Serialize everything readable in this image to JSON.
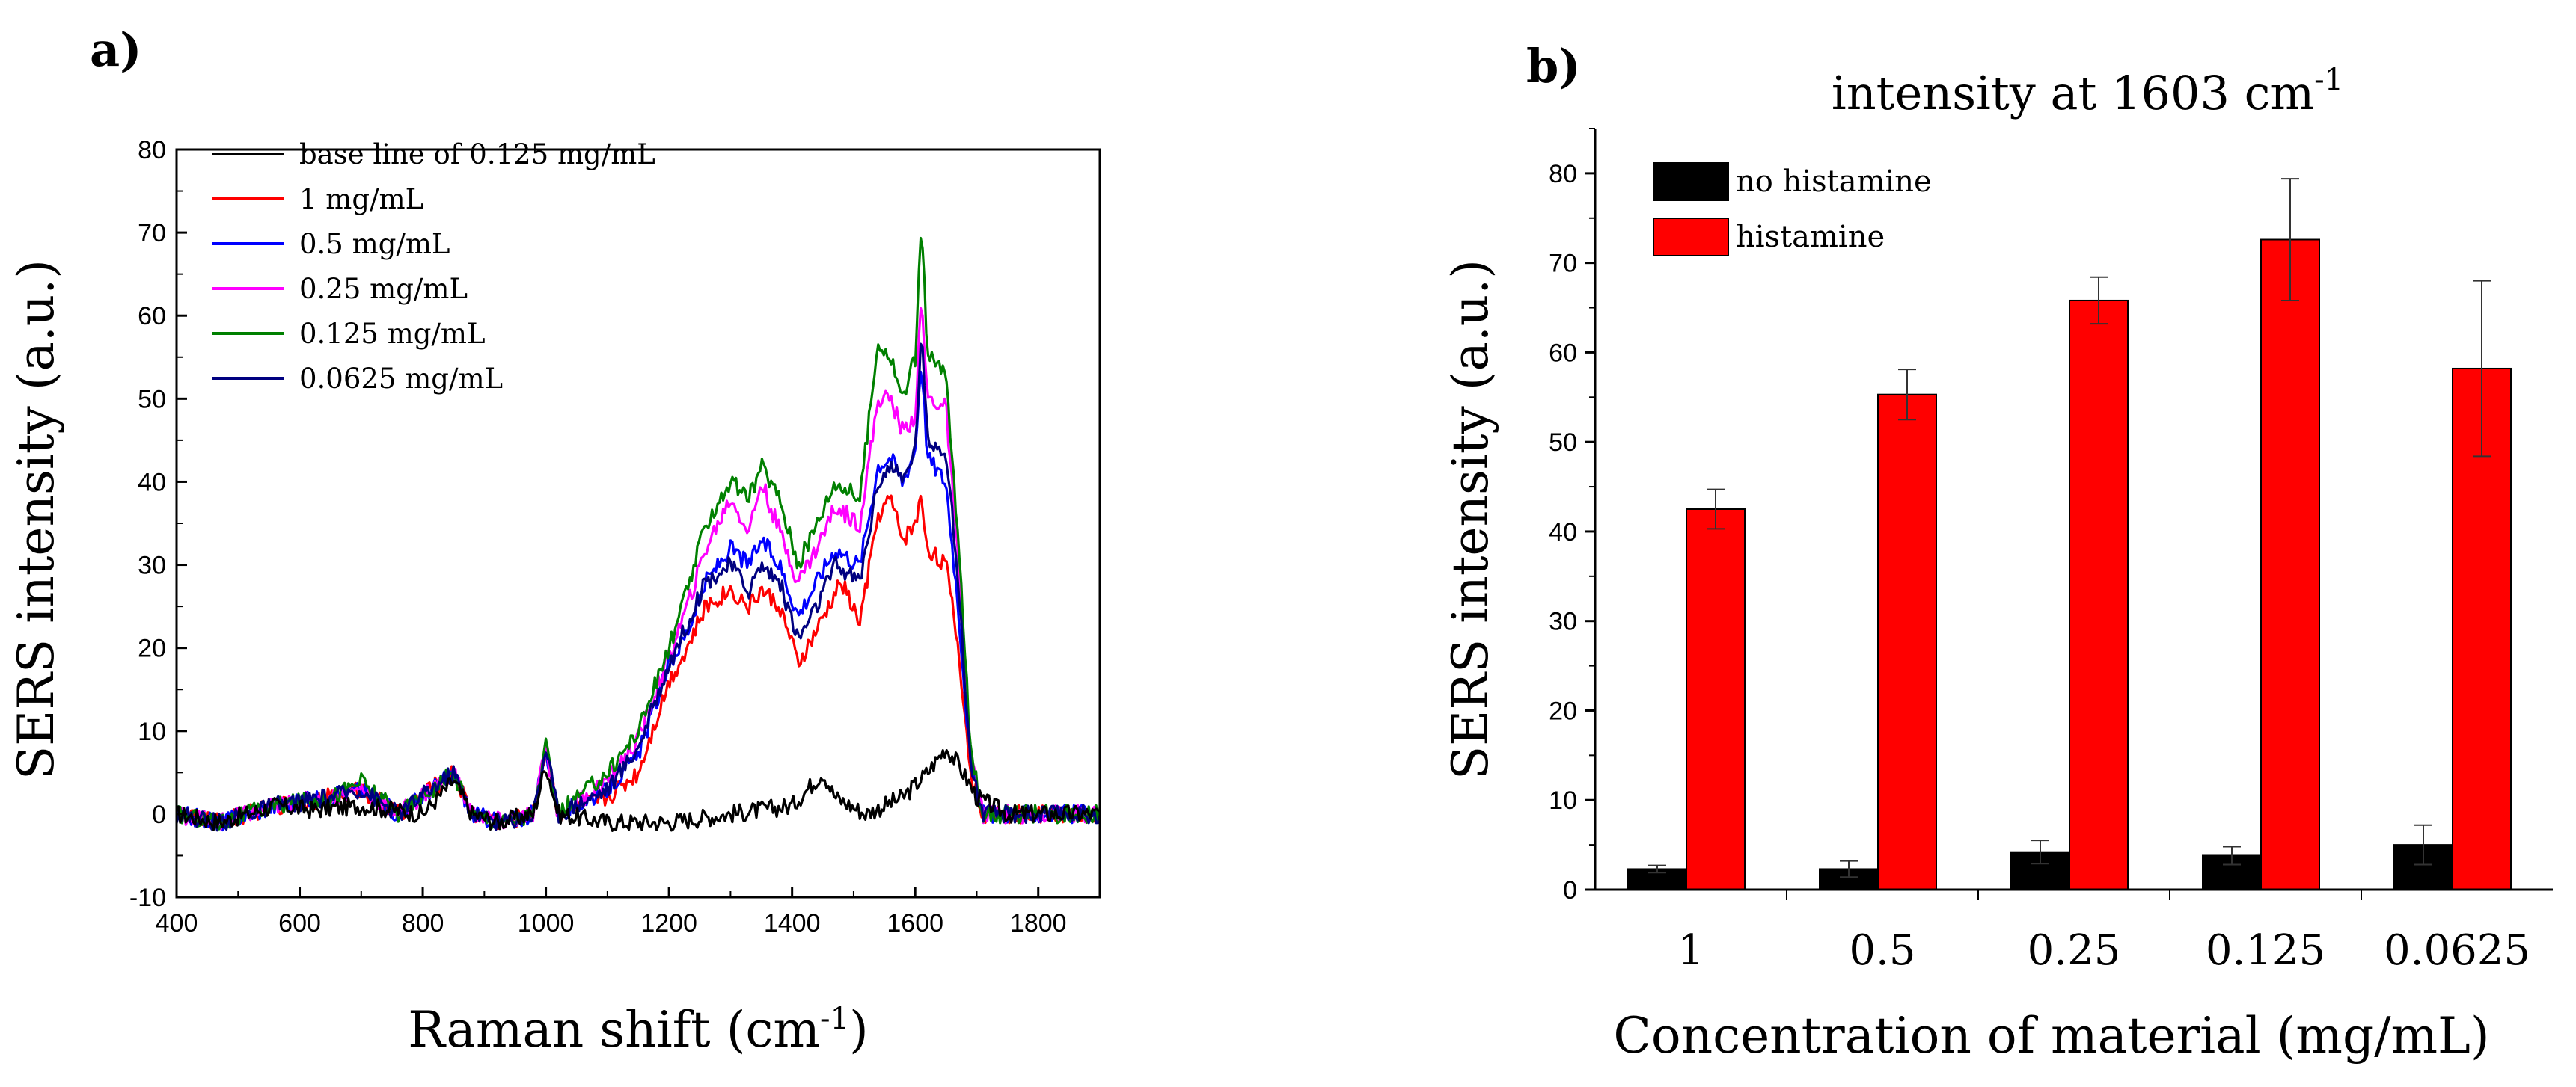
{
  "chart_data": [
    {
      "type": "line",
      "panel_label": "a)",
      "title": "",
      "xlabel": "Raman shift (cm-1)",
      "xlabel_main": "Raman shift (cm",
      "xlabel_sup": "-1",
      "xlabel_close": ")",
      "ylabel": "SERS intensity (a.u.)",
      "xlim": [
        400,
        1900
      ],
      "ylim": [
        -10,
        80
      ],
      "x_ticks": [
        "400",
        "600",
        "800",
        "1000",
        "1200",
        "1400",
        "1600",
        "1800"
      ],
      "y_ticks": [
        "-10",
        "0",
        "10",
        "20",
        "30",
        "40",
        "50",
        "60",
        "70",
        "80"
      ],
      "legend_position": "top-left",
      "series": [
        {
          "name": "base line of 0.125 mg/mL",
          "color": "#000000",
          "points": [
            [
              400,
              0
            ],
            [
              470,
              -1
            ],
            [
              560,
              1
            ],
            [
              620,
              0.5
            ],
            [
              700,
              1
            ],
            [
              800,
              0
            ],
            [
              850,
              4
            ],
            [
              880,
              0
            ],
            [
              920,
              -1
            ],
            [
              980,
              0
            ],
            [
              1000,
              6
            ],
            [
              1020,
              0
            ],
            [
              1100,
              -1
            ],
            [
              1200,
              -1
            ],
            [
              1300,
              0
            ],
            [
              1400,
              1
            ],
            [
              1450,
              5
            ],
            [
              1470,
              2
            ],
            [
              1520,
              0
            ],
            [
              1580,
              2
            ],
            [
              1620,
              5
            ],
            [
              1650,
              8
            ],
            [
              1670,
              6
            ],
            [
              1700,
              2
            ],
            [
              1750,
              0
            ],
            [
              1900,
              0
            ]
          ]
        },
        {
          "name": "1 mg/mL",
          "color": "#ff0000",
          "points": [
            [
              400,
              0
            ],
            [
              470,
              -1
            ],
            [
              560,
              1
            ],
            [
              650,
              2
            ],
            [
              700,
              3
            ],
            [
              760,
              0
            ],
            [
              850,
              5
            ],
            [
              880,
              0
            ],
            [
              930,
              -1
            ],
            [
              980,
              0
            ],
            [
              1000,
              8
            ],
            [
              1020,
              0
            ],
            [
              1100,
              2
            ],
            [
              1150,
              5
            ],
            [
              1200,
              16
            ],
            [
              1230,
              20
            ],
            [
              1260,
              25
            ],
            [
              1300,
              27
            ],
            [
              1330,
              25
            ],
            [
              1350,
              27
            ],
            [
              1380,
              25
            ],
            [
              1410,
              18
            ],
            [
              1440,
              22
            ],
            [
              1480,
              28
            ],
            [
              1510,
              23
            ],
            [
              1540,
              36
            ],
            [
              1560,
              38
            ],
            [
              1580,
              33
            ],
            [
              1600,
              35
            ],
            [
              1610,
              38
            ],
            [
              1620,
              32
            ],
            [
              1650,
              30
            ],
            [
              1670,
              20
            ],
            [
              1690,
              5
            ],
            [
              1710,
              0
            ],
            [
              1900,
              0
            ]
          ]
        },
        {
          "name": "0.5 mg/mL",
          "color": "#0000ff",
          "points": [
            [
              400,
              0
            ],
            [
              470,
              -1
            ],
            [
              560,
              1
            ],
            [
              650,
              2
            ],
            [
              700,
              3
            ],
            [
              760,
              0
            ],
            [
              850,
              5
            ],
            [
              880,
              0
            ],
            [
              930,
              -1
            ],
            [
              980,
              0
            ],
            [
              1000,
              8
            ],
            [
              1020,
              0
            ],
            [
              1100,
              3
            ],
            [
              1150,
              7
            ],
            [
              1200,
              18
            ],
            [
              1230,
              22
            ],
            [
              1260,
              28
            ],
            [
              1300,
              32
            ],
            [
              1330,
              30
            ],
            [
              1350,
              33
            ],
            [
              1380,
              30
            ],
            [
              1410,
              24
            ],
            [
              1440,
              28
            ],
            [
              1470,
              32
            ],
            [
              1510,
              30
            ],
            [
              1540,
              42
            ],
            [
              1560,
              43
            ],
            [
              1580,
              40
            ],
            [
              1600,
              44
            ],
            [
              1610,
              55
            ],
            [
              1620,
              43
            ],
            [
              1650,
              40
            ],
            [
              1670,
              25
            ],
            [
              1690,
              6
            ],
            [
              1710,
              0
            ],
            [
              1900,
              0
            ]
          ]
        },
        {
          "name": "0.25 mg/mL",
          "color": "#ff00ff",
          "points": [
            [
              400,
              0
            ],
            [
              470,
              -1
            ],
            [
              560,
              1
            ],
            [
              650,
              2
            ],
            [
              700,
              3
            ],
            [
              760,
              0
            ],
            [
              850,
              5
            ],
            [
              880,
              0
            ],
            [
              930,
              -1
            ],
            [
              980,
              0
            ],
            [
              1000,
              8
            ],
            [
              1020,
              0
            ],
            [
              1100,
              4
            ],
            [
              1150,
              9
            ],
            [
              1200,
              19
            ],
            [
              1230,
              25
            ],
            [
              1260,
              32
            ],
            [
              1300,
              38
            ],
            [
              1330,
              34
            ],
            [
              1350,
              40
            ],
            [
              1380,
              34
            ],
            [
              1410,
              28
            ],
            [
              1440,
              32
            ],
            [
              1470,
              37
            ],
            [
              1510,
              35
            ],
            [
              1540,
              50
            ],
            [
              1560,
              50
            ],
            [
              1580,
              46
            ],
            [
              1600,
              48
            ],
            [
              1610,
              62
            ],
            [
              1620,
              50
            ],
            [
              1650,
              49
            ],
            [
              1670,
              30
            ],
            [
              1690,
              7
            ],
            [
              1710,
              0
            ],
            [
              1900,
              0
            ]
          ]
        },
        {
          "name": "0.125 mg/mL",
          "color": "#008000",
          "points": [
            [
              400,
              0
            ],
            [
              470,
              -1
            ],
            [
              560,
              1
            ],
            [
              650,
              2
            ],
            [
              700,
              4
            ],
            [
              760,
              0
            ],
            [
              850,
              5
            ],
            [
              880,
              0
            ],
            [
              930,
              -1
            ],
            [
              980,
              0
            ],
            [
              1000,
              8
            ],
            [
              1020,
              0
            ],
            [
              1100,
              5
            ],
            [
              1150,
              10
            ],
            [
              1200,
              20
            ],
            [
              1230,
              27
            ],
            [
              1260,
              35
            ],
            [
              1300,
              40
            ],
            [
              1330,
              38
            ],
            [
              1350,
              42
            ],
            [
              1380,
              38
            ],
            [
              1410,
              30
            ],
            [
              1440,
              35
            ],
            [
              1470,
              40
            ],
            [
              1510,
              38
            ],
            [
              1540,
              57
            ],
            [
              1560,
              55
            ],
            [
              1580,
              50
            ],
            [
              1600,
              55
            ],
            [
              1610,
              72
            ],
            [
              1620,
              55
            ],
            [
              1650,
              53
            ],
            [
              1670,
              33
            ],
            [
              1690,
              8
            ],
            [
              1710,
              0
            ],
            [
              1900,
              0
            ]
          ]
        },
        {
          "name": "0.0625 mg/mL",
          "color": "#000080",
          "points": [
            [
              400,
              0
            ],
            [
              470,
              -1
            ],
            [
              560,
              1
            ],
            [
              650,
              2
            ],
            [
              700,
              3
            ],
            [
              760,
              0
            ],
            [
              850,
              5
            ],
            [
              880,
              0
            ],
            [
              930,
              -1
            ],
            [
              980,
              0
            ],
            [
              1000,
              8
            ],
            [
              1020,
              0
            ],
            [
              1100,
              3
            ],
            [
              1150,
              8
            ],
            [
              1200,
              18
            ],
            [
              1230,
              23
            ],
            [
              1260,
              28
            ],
            [
              1300,
              30
            ],
            [
              1330,
              27
            ],
            [
              1350,
              30
            ],
            [
              1380,
              28
            ],
            [
              1410,
              21
            ],
            [
              1440,
              25
            ],
            [
              1470,
              30
            ],
            [
              1510,
              28
            ],
            [
              1540,
              40
            ],
            [
              1560,
              42
            ],
            [
              1580,
              40
            ],
            [
              1600,
              44
            ],
            [
              1610,
              58
            ],
            [
              1620,
              45
            ],
            [
              1650,
              44
            ],
            [
              1670,
              28
            ],
            [
              1690,
              6
            ],
            [
              1710,
              0
            ],
            [
              1900,
              0
            ]
          ]
        }
      ]
    },
    {
      "type": "bar",
      "panel_label": "b)",
      "title": "intensity at 1603 cm-1",
      "title_main": "intensity at 1603 cm",
      "title_sup": "-1",
      "xlabel": "Concentration of material (mg/mL)",
      "ylabel": "SERS intensity (a.u.)",
      "ylim": [
        0,
        85
      ],
      "y_ticks": [
        "0",
        "10",
        "20",
        "30",
        "40",
        "50",
        "60",
        "70",
        "80"
      ],
      "categories": [
        "1",
        "0.5",
        "0.25",
        "0.125",
        "0.0625"
      ],
      "legend_position": "top-left",
      "series": [
        {
          "name": "no histamine",
          "color": "#000000",
          "values": [
            2.3,
            2.3,
            4.2,
            3.8,
            5.0
          ],
          "errors": [
            0.4,
            0.9,
            1.3,
            1.0,
            2.2
          ]
        },
        {
          "name": "histamine",
          "color": "#ff0000",
          "values": [
            42.5,
            55.3,
            65.8,
            72.6,
            58.2
          ],
          "errors": [
            2.2,
            2.8,
            2.6,
            6.8,
            9.8
          ]
        }
      ]
    }
  ]
}
